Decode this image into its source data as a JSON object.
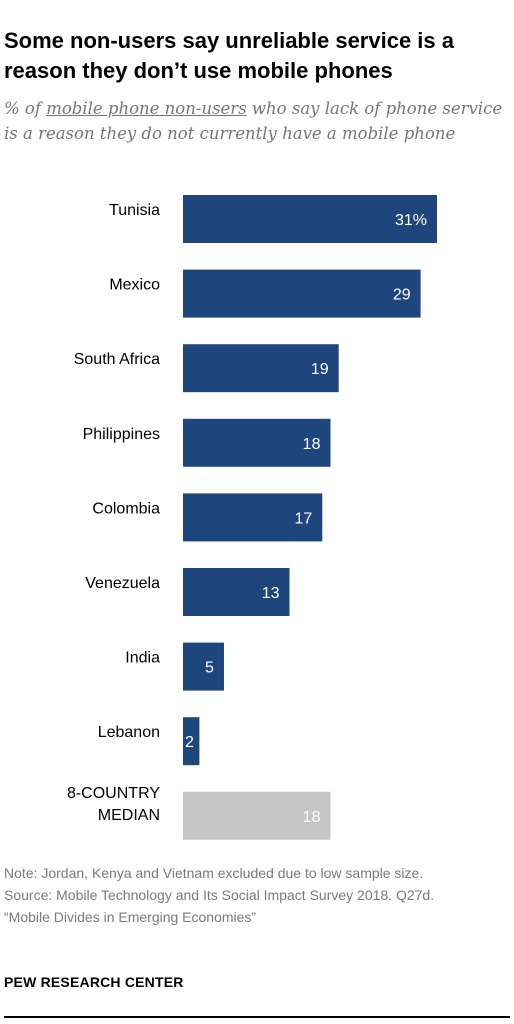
{
  "title": "Some non-users say unreliable service is a reason they don’t use mobile phones",
  "subtitle": {
    "prefix": "% of ",
    "underlined": "mobile phone non-users",
    "suffix": " who say lack of phone service is a reason they do not currently have a mobile phone"
  },
  "notes": {
    "note": "Note: Jordan, Kenya and Vietnam excluded due to low sample size.",
    "source": "Source: Mobile Technology and Its Social Impact Survey 2018. Q27d.",
    "report": "“Mobile Divides in Emerging Economies”"
  },
  "org": "PEW RESEARCH CENTER",
  "colors": {
    "bar": "#1f467c",
    "median_bar": "#c6c6c6",
    "value_text": "#ffffff"
  },
  "chart_data": {
    "type": "bar",
    "orientation": "horizontal",
    "categories": [
      "Tunisia",
      "Mexico",
      "South Africa",
      "Philippines",
      "Colombia",
      "Venezuela",
      "India",
      "Lebanon",
      "8-COUNTRY MEDIAN"
    ],
    "values": [
      31,
      29,
      19,
      18,
      17,
      13,
      5,
      2,
      18
    ],
    "value_labels": [
      "31%",
      "29",
      "19",
      "18",
      "17",
      "13",
      "5",
      "2",
      "18"
    ],
    "highlight": [
      false,
      false,
      false,
      false,
      false,
      false,
      false,
      false,
      true
    ],
    "xlim": [
      0,
      31
    ],
    "grid": false,
    "legend": "none",
    "xlabel": "",
    "ylabel": ""
  }
}
